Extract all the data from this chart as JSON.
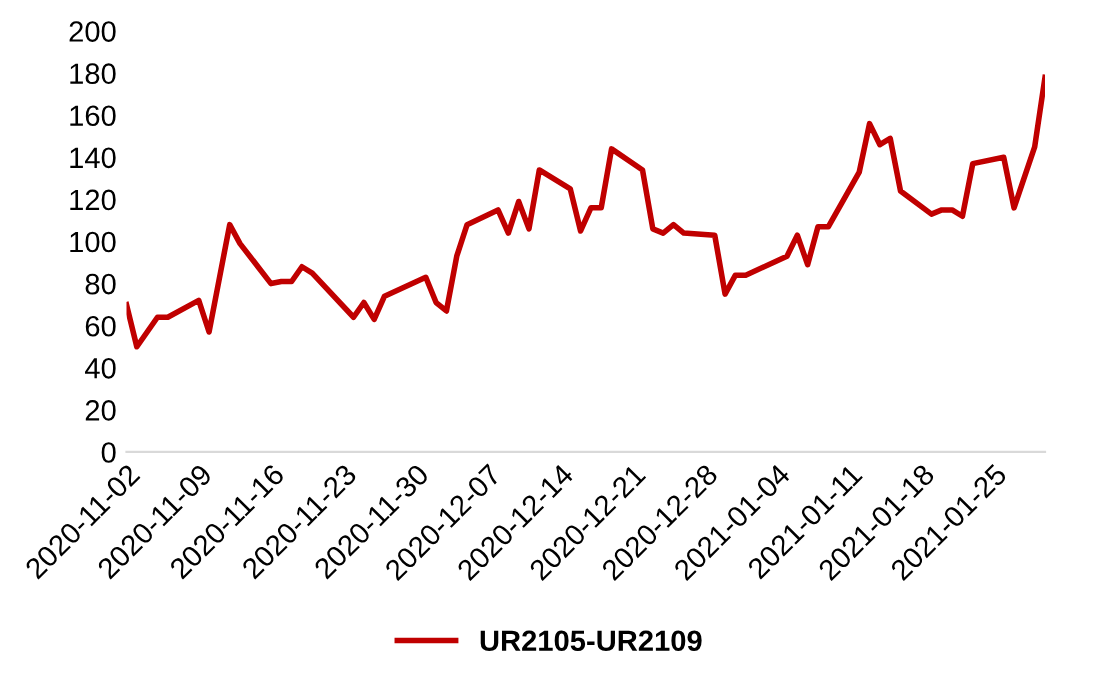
{
  "chart_data": {
    "type": "line",
    "x": [
      "2020-11-02",
      "2020-11-03",
      "2020-11-05",
      "2020-11-06",
      "2020-11-09",
      "2020-11-10",
      "2020-11-12",
      "2020-11-13",
      "2020-11-16",
      "2020-11-17",
      "2020-11-18",
      "2020-11-19",
      "2020-11-20",
      "2020-11-24",
      "2020-11-25",
      "2020-11-26",
      "2020-11-27",
      "2020-12-01",
      "2020-12-02",
      "2020-12-03",
      "2020-12-04",
      "2020-12-05",
      "2020-12-08",
      "2020-12-09",
      "2020-12-10",
      "2020-12-11",
      "2020-12-12",
      "2020-12-15",
      "2020-12-16",
      "2020-12-17",
      "2020-12-18",
      "2020-12-19",
      "2020-12-22",
      "2020-12-23",
      "2020-12-24",
      "2020-12-25",
      "2020-12-26",
      "2020-12-29",
      "2020-12-30",
      "2020-12-31",
      "2021-01-01",
      "2021-01-05",
      "2021-01-06",
      "2021-01-07",
      "2021-01-08",
      "2021-01-09",
      "2021-01-12",
      "2021-01-13",
      "2021-01-14",
      "2021-01-15",
      "2021-01-16",
      "2021-01-19",
      "2021-01-20",
      "2021-01-21",
      "2021-01-22",
      "2021-01-23",
      "2021-01-26",
      "2021-01-27",
      "2021-01-29",
      "2021-01-30"
    ],
    "series": [
      {
        "name": "UR2105-UR2109",
        "color": "#c00000",
        "values": [
          70,
          50,
          64,
          64,
          72,
          57,
          108,
          99,
          80,
          81,
          81,
          88,
          85,
          64,
          71,
          63,
          74,
          83,
          71,
          67,
          93,
          108,
          115,
          104,
          119,
          106,
          134,
          125,
          105,
          116,
          116,
          144,
          134,
          106,
          104,
          108,
          104,
          103,
          75,
          84,
          84,
          93,
          103,
          89,
          107,
          107,
          133,
          156,
          146,
          149,
          124,
          113,
          115,
          115,
          112,
          137,
          140,
          116,
          145,
          178
        ]
      }
    ],
    "xlim": [
      "2020-11-02",
      "2021-01-30"
    ],
    "xticks": [
      "2020-11-02",
      "2020-11-09",
      "2020-11-16",
      "2020-11-23",
      "2020-11-30",
      "2020-12-07",
      "2020-12-14",
      "2020-12-21",
      "2020-12-28",
      "2021-01-04",
      "2021-01-11",
      "2021-01-18",
      "2021-01-25"
    ],
    "ylim": [
      0,
      200
    ],
    "yticks": [
      0,
      20,
      40,
      60,
      80,
      100,
      120,
      140,
      160,
      180,
      200
    ],
    "grid": false,
    "legend": "bottom",
    "marker": "none",
    "line_style": "solid"
  }
}
